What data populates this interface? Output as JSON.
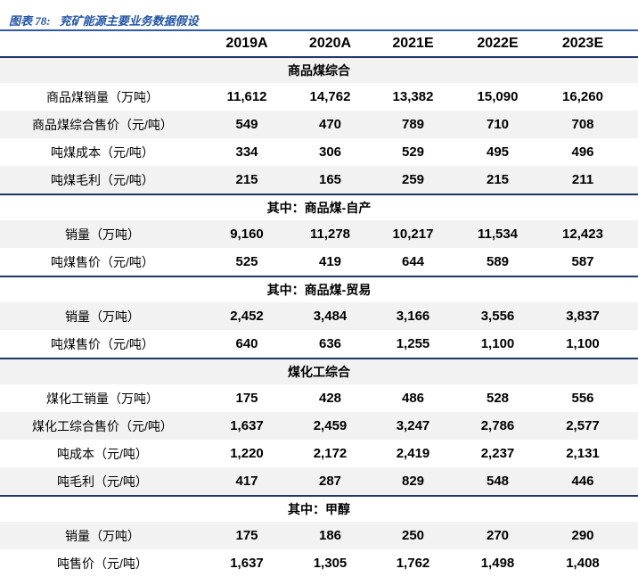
{
  "figure": {
    "label": "图表 78:",
    "title": "兖矿能源主要业务数据假设"
  },
  "colors": {
    "caption_blue": "#2456A4",
    "caption_rule_blue": "#2E5CA8",
    "section_line_navy": "#1F3864",
    "stripe_gray": "#F2F2F2",
    "text_black": "#000000"
  },
  "chart_data": {
    "type": "table",
    "title": "图表 78: 兖矿能源主要业务数据假设",
    "columns": [
      "",
      "2019A",
      "2020A",
      "2021E",
      "2022E",
      "2023E"
    ],
    "sections": [
      {
        "header": "商品煤综合",
        "header_shaded": true,
        "rows": [
          {
            "label": "商品煤销量（万吨）",
            "shaded": false,
            "values": [
              "11,612",
              "14,762",
              "13,382",
              "15,090",
              "16,260"
            ]
          },
          {
            "label": "商品煤综合售价（元/吨）",
            "shaded": true,
            "values": [
              "549",
              "470",
              "789",
              "710",
              "708"
            ]
          },
          {
            "label": "吨煤成本（元/吨）",
            "shaded": false,
            "values": [
              "334",
              "306",
              "529",
              "495",
              "496"
            ]
          },
          {
            "label": "吨煤毛利（元/吨）",
            "shaded": true,
            "values": [
              "215",
              "165",
              "259",
              "215",
              "211"
            ]
          }
        ]
      },
      {
        "header": "其中：商品煤-自产",
        "header_shaded": false,
        "rows": [
          {
            "label": "销量（万吨）",
            "shaded": true,
            "values": [
              "9,160",
              "11,278",
              "10,217",
              "11,534",
              "12,423"
            ]
          },
          {
            "label": "吨煤售价（元/吨）",
            "shaded": false,
            "values": [
              "525",
              "419",
              "644",
              "589",
              "587"
            ]
          }
        ]
      },
      {
        "header": "其中：商品煤-贸易",
        "header_shaded": false,
        "rows": [
          {
            "label": "销量（万吨）",
            "shaded": true,
            "values": [
              "2,452",
              "3,484",
              "3,166",
              "3,556",
              "3,837"
            ]
          },
          {
            "label": "吨煤售价（元/吨）",
            "shaded": false,
            "values": [
              "640",
              "636",
              "1,255",
              "1,100",
              "1,100"
            ]
          }
        ]
      },
      {
        "header": "煤化工综合",
        "header_shaded": true,
        "rows": [
          {
            "label": "煤化工销量（万吨）",
            "shaded": false,
            "values": [
              "175",
              "428",
              "486",
              "528",
              "556"
            ]
          },
          {
            "label": "煤化工综合售价（元/吨）",
            "shaded": true,
            "values": [
              "1,637",
              "2,459",
              "3,247",
              "2,786",
              "2,577"
            ]
          },
          {
            "label": "吨成本（元/吨）",
            "shaded": false,
            "values": [
              "1,220",
              "2,172",
              "2,419",
              "2,237",
              "2,131"
            ]
          },
          {
            "label": "吨毛利（元/吨）",
            "shaded": true,
            "values": [
              "417",
              "287",
              "829",
              "548",
              "446"
            ]
          }
        ]
      },
      {
        "header": "其中：甲醇",
        "header_shaded": false,
        "rows": [
          {
            "label": "销量（万吨）",
            "shaded": true,
            "values": [
              "175",
              "186",
              "250",
              "270",
              "290"
            ]
          },
          {
            "label": "吨售价（元/吨）",
            "shaded": false,
            "values": [
              "1,637",
              "1,305",
              "1,762",
              "1,498",
              "1,408"
            ]
          }
        ]
      }
    ]
  }
}
